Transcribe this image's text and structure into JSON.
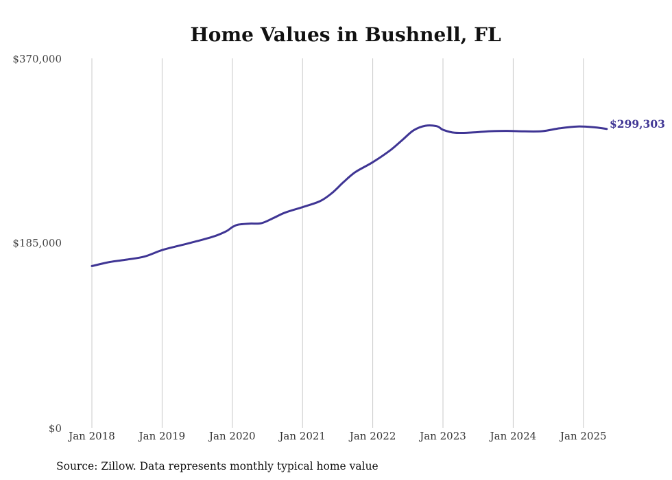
{
  "chart_data": {
    "type": "line",
    "title": "Home Values in Bushnell, FL",
    "source": "Source: Zillow. Data represents monthly typical home value",
    "xlabel": "",
    "ylabel": "",
    "y_ticks": [
      "$370,000",
      "$185,000",
      "$0"
    ],
    "y_tick_values": [
      370000,
      185000,
      0
    ],
    "ylim": [
      0,
      370000
    ],
    "x_ticks": [
      "Jan 2018",
      "Jan 2019",
      "Jan 2020",
      "Jan 2021",
      "Jan 2022",
      "Jan 2023",
      "Jan 2024",
      "Jan 2025"
    ],
    "x_tick_years": [
      2018,
      2019,
      2020,
      2021,
      2022,
      2023,
      2024,
      2025
    ],
    "grid": "vertical",
    "line_color": "#3f3594",
    "end_label": "$299,303",
    "series": [
      {
        "points": [
          [
            "2018-01",
            162000
          ],
          [
            "2018-04",
            166000
          ],
          [
            "2018-07",
            168500
          ],
          [
            "2018-10",
            171500
          ],
          [
            "2019-01",
            178000
          ],
          [
            "2019-04",
            182500
          ],
          [
            "2019-07",
            187000
          ],
          [
            "2019-10",
            192000
          ],
          [
            "2019-12",
            197000
          ],
          [
            "2020-01",
            201000
          ],
          [
            "2020-02",
            203500
          ],
          [
            "2020-04",
            204500
          ],
          [
            "2020-06",
            205000
          ],
          [
            "2020-08",
            210000
          ],
          [
            "2020-10",
            215500
          ],
          [
            "2021-01",
            221000
          ],
          [
            "2021-04",
            227000
          ],
          [
            "2021-06",
            235000
          ],
          [
            "2021-08",
            246000
          ],
          [
            "2021-10",
            256000
          ],
          [
            "2022-01",
            266000
          ],
          [
            "2022-04",
            278000
          ],
          [
            "2022-06",
            288000
          ],
          [
            "2022-08",
            298000
          ],
          [
            "2022-10",
            302500
          ],
          [
            "2022-12",
            302000
          ],
          [
            "2023-01",
            298500
          ],
          [
            "2023-03",
            295500
          ],
          [
            "2023-06",
            295800
          ],
          [
            "2023-09",
            297000
          ],
          [
            "2023-12",
            297400
          ],
          [
            "2024-03",
            296900
          ],
          [
            "2024-06",
            297100
          ],
          [
            "2024-09",
            300000
          ],
          [
            "2024-12",
            301800
          ],
          [
            "2025-03",
            300900
          ],
          [
            "2025-05",
            299303
          ]
        ]
      }
    ]
  }
}
